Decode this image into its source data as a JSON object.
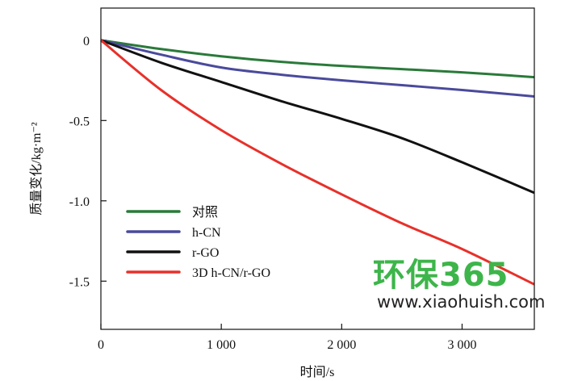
{
  "chart_data": {
    "type": "line",
    "title": "",
    "xlabel": "时间/s",
    "ylabel": "质量变化/kg·m⁻²",
    "xlim": [
      0,
      3600
    ],
    "ylim": [
      -1.8,
      0.2
    ],
    "xticks": [
      0,
      1000,
      2000,
      3000
    ],
    "xtick_labels": [
      "0",
      "1 000",
      "2 000",
      "3 000"
    ],
    "yticks": [
      0,
      -0.5,
      -1.0,
      -1.5
    ],
    "ytick_labels": [
      "0",
      "-0.5",
      "-1.0",
      "-1.5"
    ],
    "grid": false,
    "legend_position": "bottom-left",
    "x": [
      0,
      500,
      1000,
      1500,
      2000,
      2500,
      3000,
      3600
    ],
    "series": [
      {
        "name": "对照",
        "color": "#2a7a3a",
        "values": [
          0,
          -0.055,
          -0.1,
          -0.135,
          -0.16,
          -0.18,
          -0.2,
          -0.23
        ]
      },
      {
        "name": "h-CN",
        "color": "#4a4a9c",
        "values": [
          0,
          -0.09,
          -0.17,
          -0.215,
          -0.25,
          -0.28,
          -0.31,
          -0.35
        ]
      },
      {
        "name": "r-GO",
        "color": "#111111",
        "values": [
          0,
          -0.14,
          -0.26,
          -0.38,
          -0.49,
          -0.61,
          -0.76,
          -0.95
        ]
      },
      {
        "name": "3D h-CN/r-GO",
        "color": "#e8302a",
        "values": [
          0,
          -0.31,
          -0.56,
          -0.77,
          -0.96,
          -1.14,
          -1.3,
          -1.52
        ]
      }
    ]
  },
  "watermark": {
    "main": "环保365",
    "url": "www.xiaohuish.com"
  }
}
